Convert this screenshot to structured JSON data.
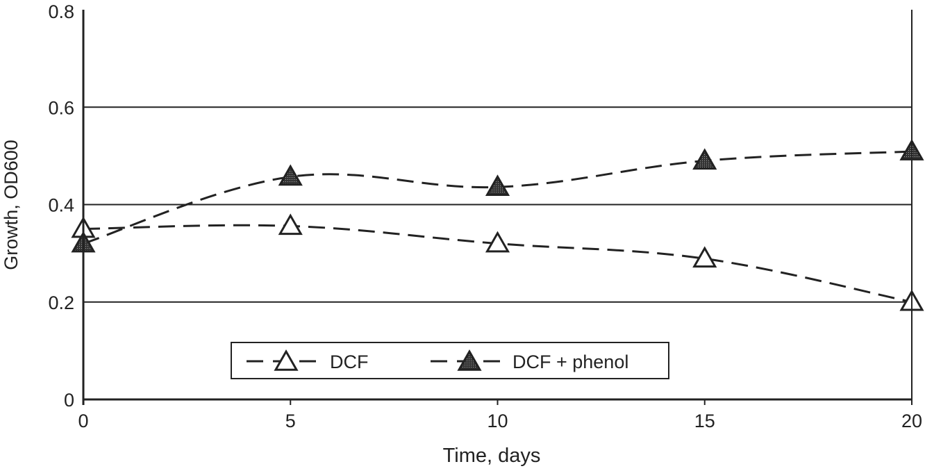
{
  "chart_data": {
    "type": "line",
    "title": "",
    "xlabel": "Time, days",
    "ylabel": "Growth, OD600",
    "xlim": [
      0,
      20
    ],
    "ylim": [
      0,
      0.8
    ],
    "xticks": [
      0,
      5,
      10,
      15,
      20
    ],
    "xtick_labels": [
      "0",
      "5",
      "10",
      "15",
      "20"
    ],
    "yticks": [
      0,
      0.2,
      0.4,
      0.6,
      0.8
    ],
    "ytick_labels": [
      "0",
      "0.2",
      "0.4",
      "0.6",
      "0.8"
    ],
    "grid": "horizontal",
    "legend_position": "bottom-center",
    "x": [
      0,
      5,
      10,
      15,
      20
    ],
    "series": [
      {
        "name": "DCF",
        "values": [
          0.35,
          0.356,
          0.32,
          0.289,
          0.2
        ],
        "marker": "open-triangle",
        "line": "dashed",
        "color": "#222222"
      },
      {
        "name": "DCF + phenol",
        "values": [
          0.32,
          0.457,
          0.436,
          0.49,
          0.509
        ],
        "marker": "filled-triangle",
        "line": "dashed",
        "color": "#222222"
      }
    ]
  }
}
